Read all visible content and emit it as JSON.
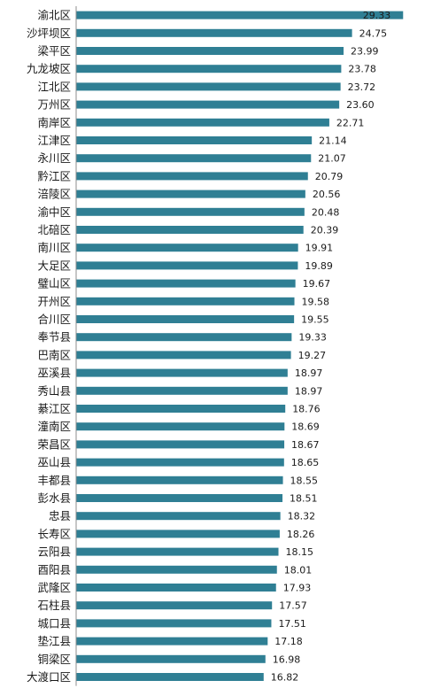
{
  "chart_data": {
    "type": "bar",
    "orientation": "horizontal",
    "grid": false,
    "legend": "none",
    "xlim": [
      0,
      30.5
    ],
    "bar_color": "#2f7f94",
    "label_color": "#1a1a1a",
    "axis_color": "#8c8c8c",
    "categories": [
      "渝北区",
      "沙坪坝区",
      "梁平区",
      "九龙坡区",
      "江北区",
      "万州区",
      "南岸区",
      "江津区",
      "永川区",
      "黔江区",
      "涪陵区",
      "渝中区",
      "北碚区",
      "南川区",
      "大足区",
      "璧山区",
      "开州区",
      "合川区",
      "奉节县",
      "巴南区",
      "巫溪县",
      "秀山县",
      "綦江区",
      "潼南区",
      "荣昌区",
      "巫山县",
      "丰都县",
      "彭水县",
      "忠县",
      "长寿区",
      "云阳县",
      "酉阳县",
      "武隆区",
      "石柱县",
      "城口县",
      "垫江县",
      "铜梁区",
      "大渡口区"
    ],
    "values": [
      29.33,
      24.75,
      23.99,
      23.78,
      23.72,
      23.6,
      22.71,
      21.14,
      21.07,
      20.79,
      20.56,
      20.48,
      20.39,
      19.91,
      19.89,
      19.67,
      19.58,
      19.55,
      19.33,
      19.27,
      18.97,
      18.97,
      18.76,
      18.69,
      18.67,
      18.65,
      18.55,
      18.51,
      18.32,
      18.26,
      18.15,
      18.01,
      17.93,
      17.57,
      17.51,
      17.18,
      16.98,
      16.82
    ],
    "value_labels": [
      "29.33",
      "24.75",
      "23.99",
      "23.78",
      "23.72",
      "23.60",
      "22.71",
      "21.14",
      "21.07",
      "20.79",
      "20.56",
      "20.48",
      "20.39",
      "19.91",
      "19.89",
      "19.67",
      "19.58",
      "19.55",
      "19.33",
      "19.27",
      "18.97",
      "18.97",
      "18.76",
      "18.69",
      "18.67",
      "18.65",
      "18.55",
      "18.51",
      "18.32",
      "18.26",
      "18.15",
      "18.01",
      "17.93",
      "17.57",
      "17.51",
      "17.18",
      "16.98",
      "16.82"
    ]
  }
}
